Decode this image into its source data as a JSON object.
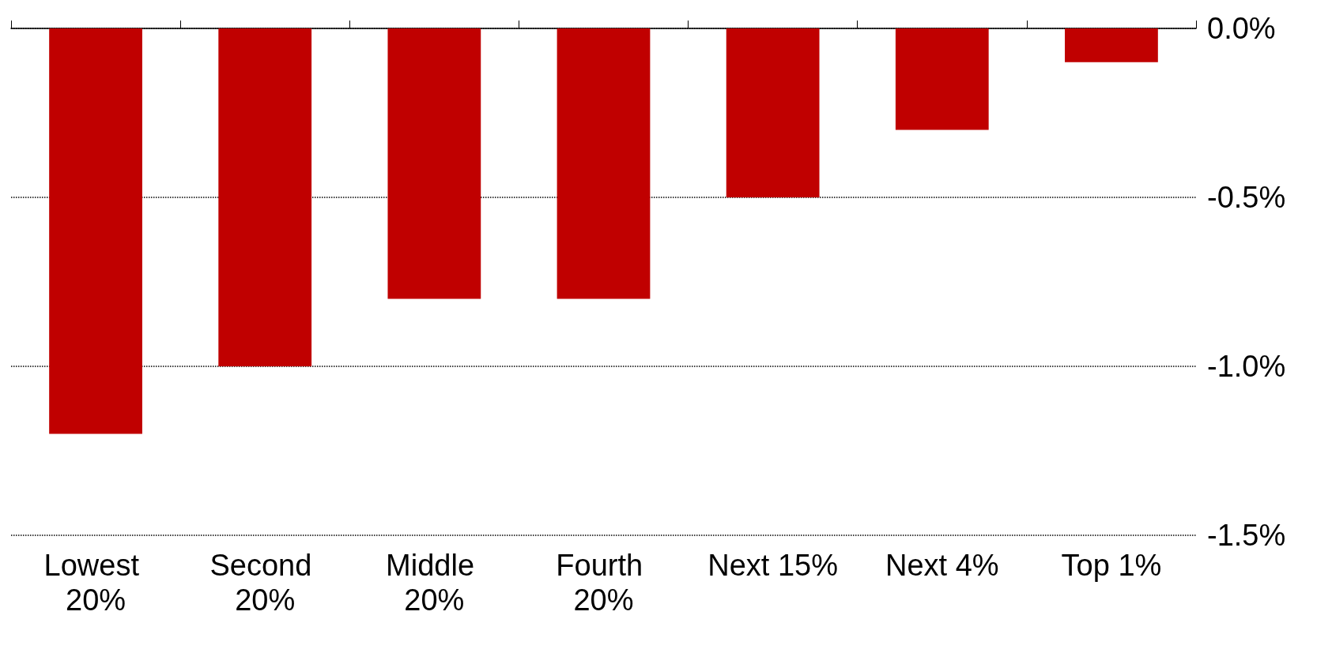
{
  "chart_data": {
    "type": "bar",
    "categories": [
      "Lowest 20%",
      "Second 20%",
      "Middle 20%",
      "Fourth 20%",
      "Next 15%",
      "Next 4%",
      "Top 1%"
    ],
    "values": [
      -1.2,
      -1.0,
      -0.8,
      -0.8,
      -0.5,
      -0.3,
      -0.1
    ],
    "color": "#c00000",
    "ylim": [
      -1.5,
      0
    ],
    "yticks": [
      {
        "value": 0,
        "label": "0.0%"
      },
      {
        "value": -0.5,
        "label": "-0.5%"
      },
      {
        "value": -1.0,
        "label": "-1.0%"
      },
      {
        "value": -1.5,
        "label": "-1.5%"
      }
    ],
    "grid": "y"
  }
}
